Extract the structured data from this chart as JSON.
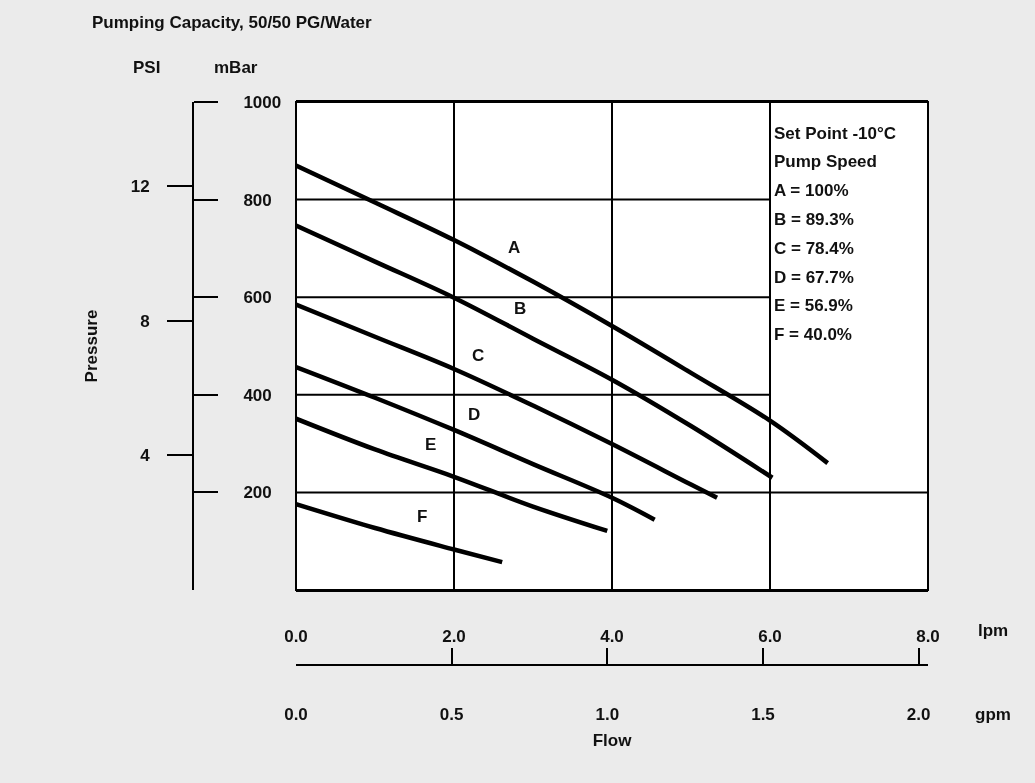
{
  "chart_data": {
    "type": "line",
    "title": "Pumping Capacity, 50/50 PG/Water",
    "xlabel": "Flow",
    "y2label": "Pressure",
    "annotations": [
      "lpm",
      "gpm",
      "PSI",
      "mBar",
      "Set Point -10°C",
      "Pump Speed",
      "A = 100%",
      "B = 89.3%",
      "C = 78.4%",
      "D = 67.7%",
      "E = 56.9%",
      "F = 40.0%"
    ],
    "series": [
      {
        "name": "A",
        "color": "#000000",
        "x": [
          0,
          1,
          2,
          3,
          4,
          5,
          6,
          6.73
        ],
        "values": [
          870,
          794,
          717,
          632,
          541,
          445,
          347,
          260
        ]
      },
      {
        "name": "B",
        "color": "#000000",
        "x": [
          0,
          1,
          2,
          3,
          4,
          5,
          6.03
        ],
        "values": [
          747,
          673,
          599,
          515,
          431,
          336,
          230
        ]
      },
      {
        "name": "C",
        "color": "#000000",
        "x": [
          0,
          1,
          2,
          3,
          4,
          5,
          5.33
        ],
        "values": [
          585,
          519,
          453,
          378,
          299,
          216,
          189
        ]
      },
      {
        "name": "D",
        "color": "#000000",
        "x": [
          0,
          1,
          2,
          3,
          4,
          4.54
        ],
        "values": [
          457,
          394,
          328,
          258,
          189,
          144
        ]
      },
      {
        "name": "E",
        "color": "#000000",
        "x": [
          0,
          1,
          2,
          3,
          3.94
        ],
        "values": [
          351,
          288,
          232,
          171,
          121
        ]
      },
      {
        "name": "F",
        "color": "#000000",
        "x": [
          0,
          1,
          2,
          2.61
        ],
        "values": [
          176,
          127,
          83,
          57
        ]
      }
    ],
    "xlim": [
      0,
      8
    ],
    "xticks": [
      {
        "value": 0,
        "label": "0.0"
      },
      {
        "value": 2,
        "label": "2.0"
      },
      {
        "value": 4,
        "label": "4.0"
      },
      {
        "value": 6,
        "label": "6.0"
      },
      {
        "value": 8,
        "label": "8.0"
      }
    ],
    "x2lim": [
      0,
      2.03
    ],
    "x2ticks": [
      {
        "value": 0,
        "label": "0.0"
      },
      {
        "value": 0.5,
        "label": "0.5"
      },
      {
        "value": 1,
        "label": "1.0"
      },
      {
        "value": 1.5,
        "label": "1.5"
      },
      {
        "value": 2,
        "label": "2.0"
      }
    ],
    "ylim": [
      0,
      1000
    ],
    "yticks": [
      200,
      400,
      600,
      800,
      1000
    ],
    "y2lim": [
      0,
      14.5
    ],
    "y2ticks": [
      4,
      8,
      12
    ],
    "grid": true,
    "legend": false,
    "marker": "none",
    "line_style": "solid"
  }
}
